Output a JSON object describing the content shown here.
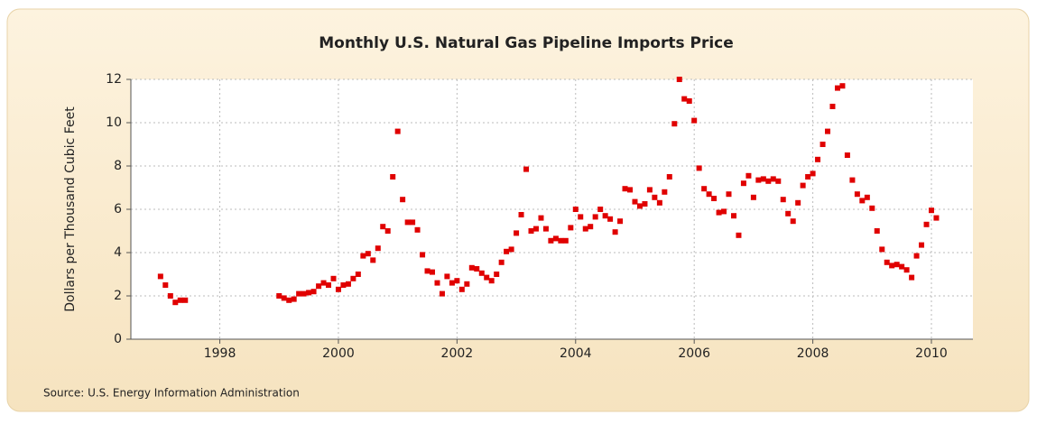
{
  "chart_data": {
    "type": "scatter",
    "title": "Monthly U.S. Natural Gas Pipeline Imports Price",
    "y_label": "Dollars per Thousand Cubic Feet",
    "source": "Source: U.S. Energy Information Administration",
    "color": "#e00000",
    "grid": true,
    "xlim": [
      1996.5,
      2010.7
    ],
    "ylim": [
      0,
      12
    ],
    "xticks": [
      1998,
      2000,
      2002,
      2004,
      2006,
      2008,
      2010
    ],
    "yticks": [
      0,
      2,
      4,
      6,
      8,
      10,
      12
    ],
    "x": [
      1997,
      1997.083,
      1997.167,
      1997.25,
      1997.333,
      1997.417,
      1999,
      1999.083,
      1999.167,
      1999.25,
      1999.333,
      1999.417,
      1999.5,
      1999.583,
      1999.667,
      1999.75,
      1999.833,
      1999.917,
      2000,
      2000.083,
      2000.167,
      2000.25,
      2000.333,
      2000.417,
      2000.5,
      2000.583,
      2000.667,
      2000.75,
      2000.833,
      2000.917,
      2001,
      2001.083,
      2001.167,
      2001.25,
      2001.333,
      2001.417,
      2001.5,
      2001.583,
      2001.667,
      2001.75,
      2001.833,
      2001.917,
      2002,
      2002.083,
      2002.167,
      2002.25,
      2002.333,
      2002.417,
      2002.5,
      2002.583,
      2002.667,
      2002.75,
      2002.833,
      2002.917,
      2003,
      2003.083,
      2003.167,
      2003.25,
      2003.333,
      2003.417,
      2003.5,
      2003.583,
      2003.667,
      2003.75,
      2003.833,
      2003.917,
      2004,
      2004.083,
      2004.167,
      2004.25,
      2004.333,
      2004.417,
      2004.5,
      2004.583,
      2004.667,
      2004.75,
      2004.833,
      2004.917,
      2005,
      2005.083,
      2005.167,
      2005.25,
      2005.333,
      2005.417,
      2005.5,
      2005.583,
      2005.667,
      2005.75,
      2005.833,
      2005.917,
      2006,
      2006.083,
      2006.167,
      2006.25,
      2006.333,
      2006.417,
      2006.5,
      2006.583,
      2006.667,
      2006.75,
      2006.833,
      2006.917,
      2007,
      2007.083,
      2007.167,
      2007.25,
      2007.333,
      2007.417,
      2007.5,
      2007.583,
      2007.667,
      2007.75,
      2007.833,
      2007.917,
      2008,
      2008.083,
      2008.167,
      2008.25,
      2008.333,
      2008.417,
      2008.5,
      2008.583,
      2008.667,
      2008.75,
      2008.833,
      2008.917,
      2009,
      2009.083,
      2009.167,
      2009.25,
      2009.333,
      2009.417,
      2009.5,
      2009.583,
      2009.667,
      2009.75,
      2009.833,
      2009.917,
      2010,
      2010.083
    ],
    "values": [
      2.9,
      2.5,
      2.0,
      1.7,
      1.8,
      1.8,
      2.0,
      1.9,
      1.8,
      1.85,
      2.1,
      2.1,
      2.15,
      2.2,
      2.45,
      2.6,
      2.5,
      2.8,
      2.3,
      2.5,
      2.55,
      2.8,
      3.0,
      3.85,
      3.95,
      3.65,
      4.2,
      5.2,
      5.0,
      7.5,
      9.6,
      6.45,
      5.4,
      5.4,
      5.05,
      3.9,
      3.15,
      3.1,
      2.6,
      2.1,
      2.9,
      2.6,
      2.7,
      2.3,
      2.55,
      3.3,
      3.25,
      3.05,
      2.85,
      2.7,
      3.0,
      3.55,
      4.05,
      4.15,
      4.9,
      5.75,
      7.85,
      5.0,
      5.1,
      5.6,
      5.1,
      4.55,
      4.65,
      4.55,
      4.55,
      5.15,
      6.0,
      5.65,
      5.1,
      5.2,
      5.65,
      6.0,
      5.7,
      5.55,
      4.95,
      5.45,
      6.95,
      6.9,
      6.35,
      6.15,
      6.25,
      6.9,
      6.55,
      6.3,
      6.8,
      7.5,
      9.95,
      12.0,
      11.1,
      11.0,
      10.1,
      7.9,
      6.95,
      6.7,
      6.5,
      5.85,
      5.9,
      6.7,
      5.7,
      4.8,
      7.2,
      7.55,
      6.55,
      7.35,
      7.4,
      7.3,
      7.4,
      7.3,
      6.45,
      5.8,
      5.45,
      6.3,
      7.1,
      7.5,
      7.65,
      8.3,
      9.0,
      9.6,
      10.75,
      11.6,
      11.7,
      8.5,
      7.35,
      6.7,
      6.4,
      6.55,
      6.05,
      5.0,
      4.15,
      3.55,
      3.4,
      3.45,
      3.35,
      3.2,
      2.85,
      3.85,
      4.35,
      5.3,
      5.95,
      5.6
    ]
  }
}
